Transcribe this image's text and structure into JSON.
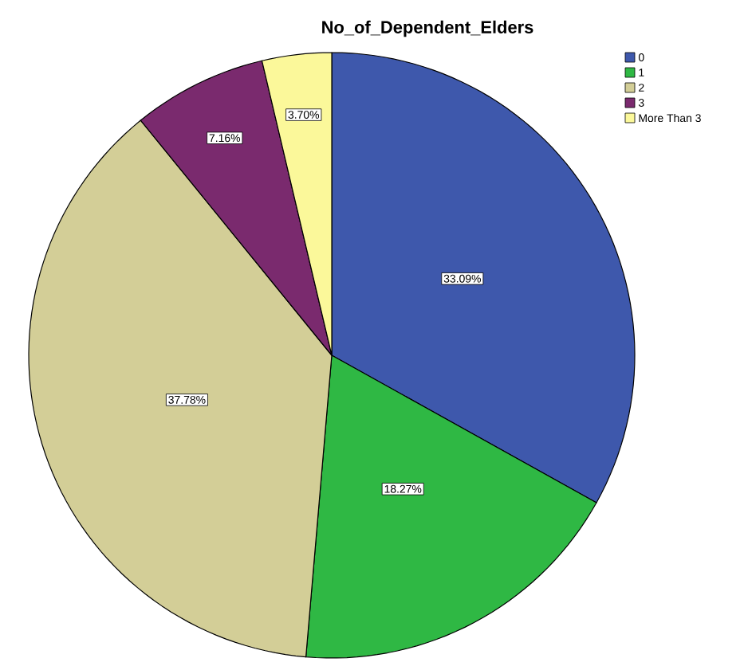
{
  "chart_data": {
    "type": "pie",
    "title": "No_of_Dependent_Elders",
    "categories": [
      "0",
      "1",
      "2",
      "3",
      "More Than 3"
    ],
    "values": [
      33.09,
      18.27,
      37.78,
      7.16,
      3.7
    ],
    "value_labels": [
      "33.09%",
      "18.27%",
      "37.78%",
      "7.16%",
      "3.70%"
    ],
    "colors": [
      "#3e58ac",
      "#2fb844",
      "#d3ce97",
      "#7a2a6e",
      "#fbf89a"
    ],
    "legend": "top right"
  }
}
